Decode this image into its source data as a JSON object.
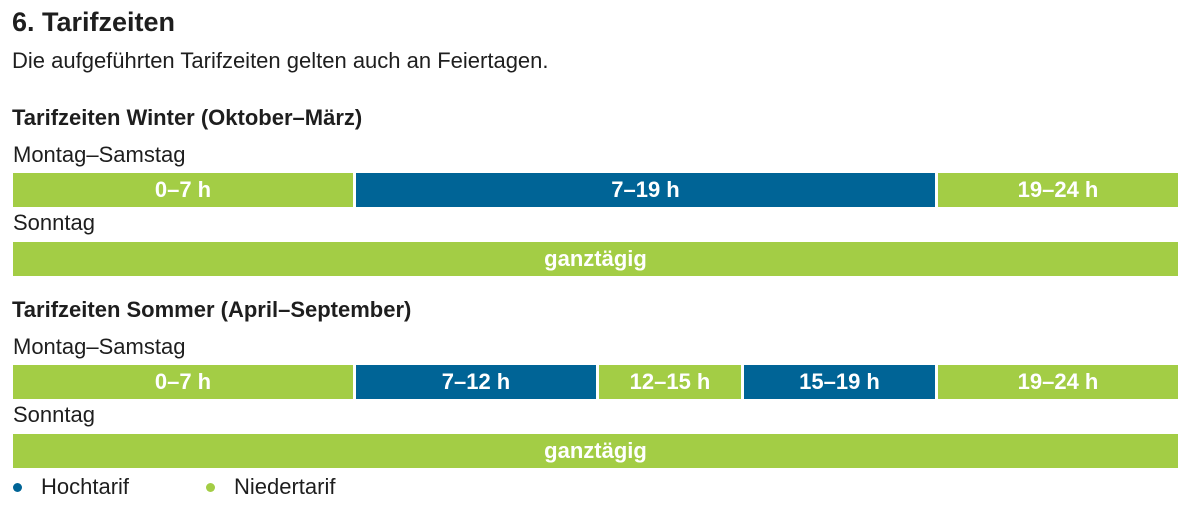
{
  "heading": "6. Tarifzeiten",
  "intro": "Die aufgeführten Tarifzeiten gelten auch an Feiertagen.",
  "winter": {
    "title": "Tarifzeiten Winter (Oktober–März)",
    "weekday_label": "Montag–Samstag",
    "weekday_segments": [
      {
        "label": "0–7 h",
        "from_h": 0,
        "to_h": 7,
        "tariff": "Niedertarif"
      },
      {
        "label": "7–19 h",
        "from_h": 7,
        "to_h": 19,
        "tariff": "Hochtarif"
      },
      {
        "label": "19–24 h",
        "from_h": 19,
        "to_h": 24,
        "tariff": "Niedertarif"
      }
    ],
    "sunday_label": "Sonntag",
    "sunday_segment": {
      "label": "ganztägig",
      "tariff": "Niedertarif"
    }
  },
  "summer": {
    "title": "Tarifzeiten Sommer (April–September)",
    "weekday_label": "Montag–Samstag",
    "weekday_segments": [
      {
        "label": "0–7 h",
        "from_h": 0,
        "to_h": 7,
        "tariff": "Niedertarif"
      },
      {
        "label": "7–12 h",
        "from_h": 7,
        "to_h": 12,
        "tariff": "Hochtarif"
      },
      {
        "label": "12–15 h",
        "from_h": 12,
        "to_h": 15,
        "tariff": "Niedertarif"
      },
      {
        "label": "15–19 h",
        "from_h": 15,
        "to_h": 19,
        "tariff": "Hochtarif"
      },
      {
        "label": "19–24 h",
        "from_h": 19,
        "to_h": 24,
        "tariff": "Niedertarif"
      }
    ],
    "sunday_label": "Sonntag",
    "sunday_segment": {
      "label": "ganztägig",
      "tariff": "Niedertarif"
    }
  },
  "legend": {
    "high": "Hochtarif",
    "low": "Niedertarif"
  },
  "colors": {
    "high": "#006496",
    "low": "#a3cd45"
  }
}
